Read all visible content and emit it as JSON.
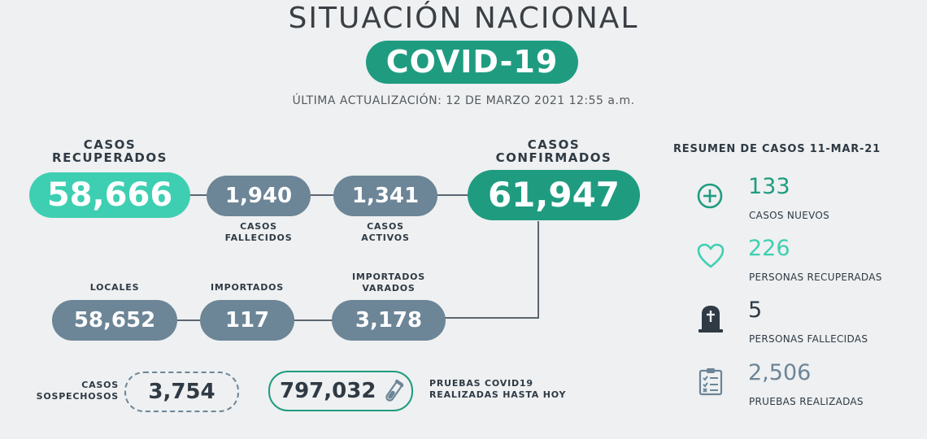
{
  "header": {
    "title": "SITUACIÓN NACIONAL",
    "badge": "COVID-19",
    "updated": "ÚLTIMA ACTUALIZACIÓN: 12 DE MARZO 2021 12:55 a.m."
  },
  "stats": {
    "recuperados": {
      "label_1": "CASOS",
      "label_2": "RECUPERADOS",
      "value": "58,666"
    },
    "fallecidos": {
      "value": "1,940",
      "label_1": "CASOS",
      "label_2": "FALLECIDOS"
    },
    "activos": {
      "value": "1,341",
      "label_1": "CASOS",
      "label_2": "ACTIVOS"
    },
    "confirmados": {
      "label_1": "CASOS",
      "label_2": "CONFIRMADOS",
      "value": "61,947"
    },
    "locales": {
      "label": "LOCALES",
      "value": "58,652"
    },
    "importados": {
      "label": "IMPORTADOS",
      "value": "117"
    },
    "varados": {
      "label_1": "IMPORTADOS",
      "label_2": "VARADOS",
      "value": "3,178"
    },
    "sospechosos": {
      "label_1": "CASOS",
      "label_2": "SOSPECHOSOS",
      "value": "3,754"
    },
    "pruebas": {
      "value": "797,032",
      "label_1": "PRUEBAS COVID19",
      "label_2": "REALIZADAS HASTA HOY"
    }
  },
  "summary": {
    "heading": "RESUMEN DE CASOS 11-MAR-21",
    "items": [
      {
        "icon": "plus-circle-icon",
        "value": "133",
        "label": "CASOS NUEVOS",
        "color": "#1f9c80"
      },
      {
        "icon": "heart-icon",
        "value": "226",
        "label": "PERSONAS RECUPERADAS",
        "color": "#3ecfb2"
      },
      {
        "icon": "tombstone-icon",
        "value": "5",
        "label": "PERSONAS FALLECIDAS",
        "color": "#2f3a44"
      },
      {
        "icon": "clipboard-checklist-icon",
        "value": "2,506",
        "label": "PRUEBAS REALIZADAS",
        "color": "#6c8597"
      }
    ]
  },
  "colors": {
    "teal": "#3ecfb2",
    "green": "#1f9c80",
    "gray": "#6c8597",
    "background": "#eef0f1"
  }
}
